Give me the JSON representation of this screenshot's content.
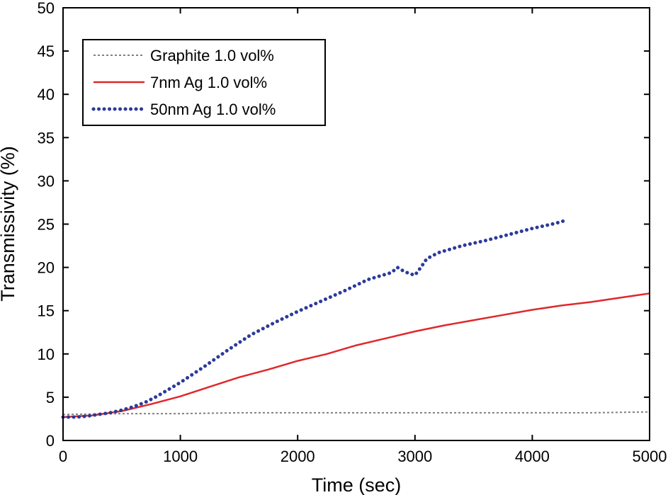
{
  "chart_data": {
    "type": "line",
    "title": "",
    "xlabel": "Time (sec)",
    "ylabel": "Transmissivity (%)",
    "xlim": [
      0,
      5000
    ],
    "ylim": [
      0,
      50
    ],
    "xticks": [
      0,
      1000,
      2000,
      3000,
      4000,
      5000
    ],
    "yticks": [
      0,
      5,
      10,
      15,
      20,
      25,
      30,
      35,
      40,
      45,
      50
    ],
    "grid": false,
    "legend_position": "top-left",
    "series": [
      {
        "name": "Graphite 1.0 vol%",
        "style": "dashed",
        "color": "#808080",
        "x": [
          0,
          500,
          1000,
          1500,
          2000,
          2500,
          3000,
          3500,
          4000,
          4500,
          5000
        ],
        "y": [
          3.0,
          3.1,
          3.1,
          3.2,
          3.2,
          3.2,
          3.2,
          3.2,
          3.2,
          3.2,
          3.3
        ]
      },
      {
        "name": "7nm Ag 1.0 vol%",
        "style": "solid",
        "color": "#e0282c",
        "x": [
          0,
          250,
          500,
          750,
          1000,
          1250,
          1500,
          1750,
          2000,
          2250,
          2500,
          2750,
          3000,
          3250,
          3500,
          3750,
          4000,
          4250,
          4500,
          4750,
          5000
        ],
        "y": [
          2.7,
          2.9,
          3.4,
          4.2,
          5.1,
          6.2,
          7.3,
          8.2,
          9.2,
          10.0,
          11.0,
          11.8,
          12.6,
          13.3,
          13.9,
          14.5,
          15.1,
          15.6,
          16.0,
          16.5,
          17.0
        ]
      },
      {
        "name": "50nm Ag 1.0 vol%",
        "style": "dotted",
        "color": "#2b3a9a",
        "x": [
          0,
          100,
          200,
          300,
          400,
          500,
          600,
          700,
          800,
          900,
          1000,
          1200,
          1400,
          1600,
          1800,
          2000,
          2200,
          2400,
          2600,
          2700,
          2800,
          2850,
          2900,
          2950,
          3000,
          3050,
          3100,
          3200,
          3400,
          3600,
          3800,
          4000,
          4200,
          4300
        ],
        "y": [
          2.7,
          2.7,
          2.8,
          3.0,
          3.2,
          3.5,
          3.9,
          4.4,
          5.1,
          5.9,
          6.7,
          8.5,
          10.4,
          12.2,
          13.6,
          14.9,
          16.1,
          17.3,
          18.6,
          19.0,
          19.4,
          20.0,
          19.6,
          19.3,
          19.1,
          20.0,
          21.0,
          21.7,
          22.5,
          23.1,
          23.8,
          24.5,
          25.1,
          25.5
        ]
      }
    ]
  }
}
